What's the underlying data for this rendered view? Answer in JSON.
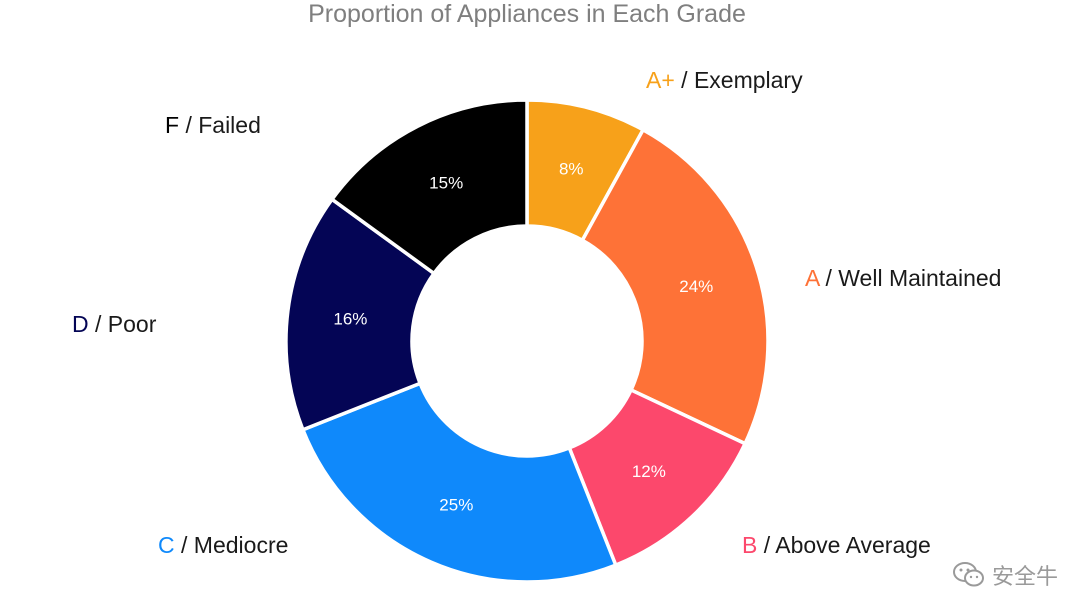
{
  "chart_data": {
    "type": "pie",
    "donut": true,
    "title": "Proportion of Appliances in Each Grade",
    "slices": [
      {
        "grade": "A+",
        "label": "Exemplary",
        "value": 8,
        "display": "8%",
        "color": "#f7a11a"
      },
      {
        "grade": "A",
        "label": "Well Maintained",
        "value": 24,
        "display": "24%",
        "color": "#fe7237"
      },
      {
        "grade": "B",
        "label": "Above Average",
        "value": 12,
        "display": "12%",
        "color": "#fc486c"
      },
      {
        "grade": "C",
        "label": "Mediocre",
        "value": 25,
        "display": "25%",
        "color": "#0f89fb"
      },
      {
        "grade": "D",
        "label": "Poor",
        "value": 16,
        "display": "16%",
        "color": "#040555"
      },
      {
        "grade": "F",
        "label": "Failed",
        "value": 15,
        "display": "15%",
        "color": "#000000"
      }
    ]
  },
  "watermark": {
    "text": "安全牛",
    "icon": "wechat-icon"
  }
}
